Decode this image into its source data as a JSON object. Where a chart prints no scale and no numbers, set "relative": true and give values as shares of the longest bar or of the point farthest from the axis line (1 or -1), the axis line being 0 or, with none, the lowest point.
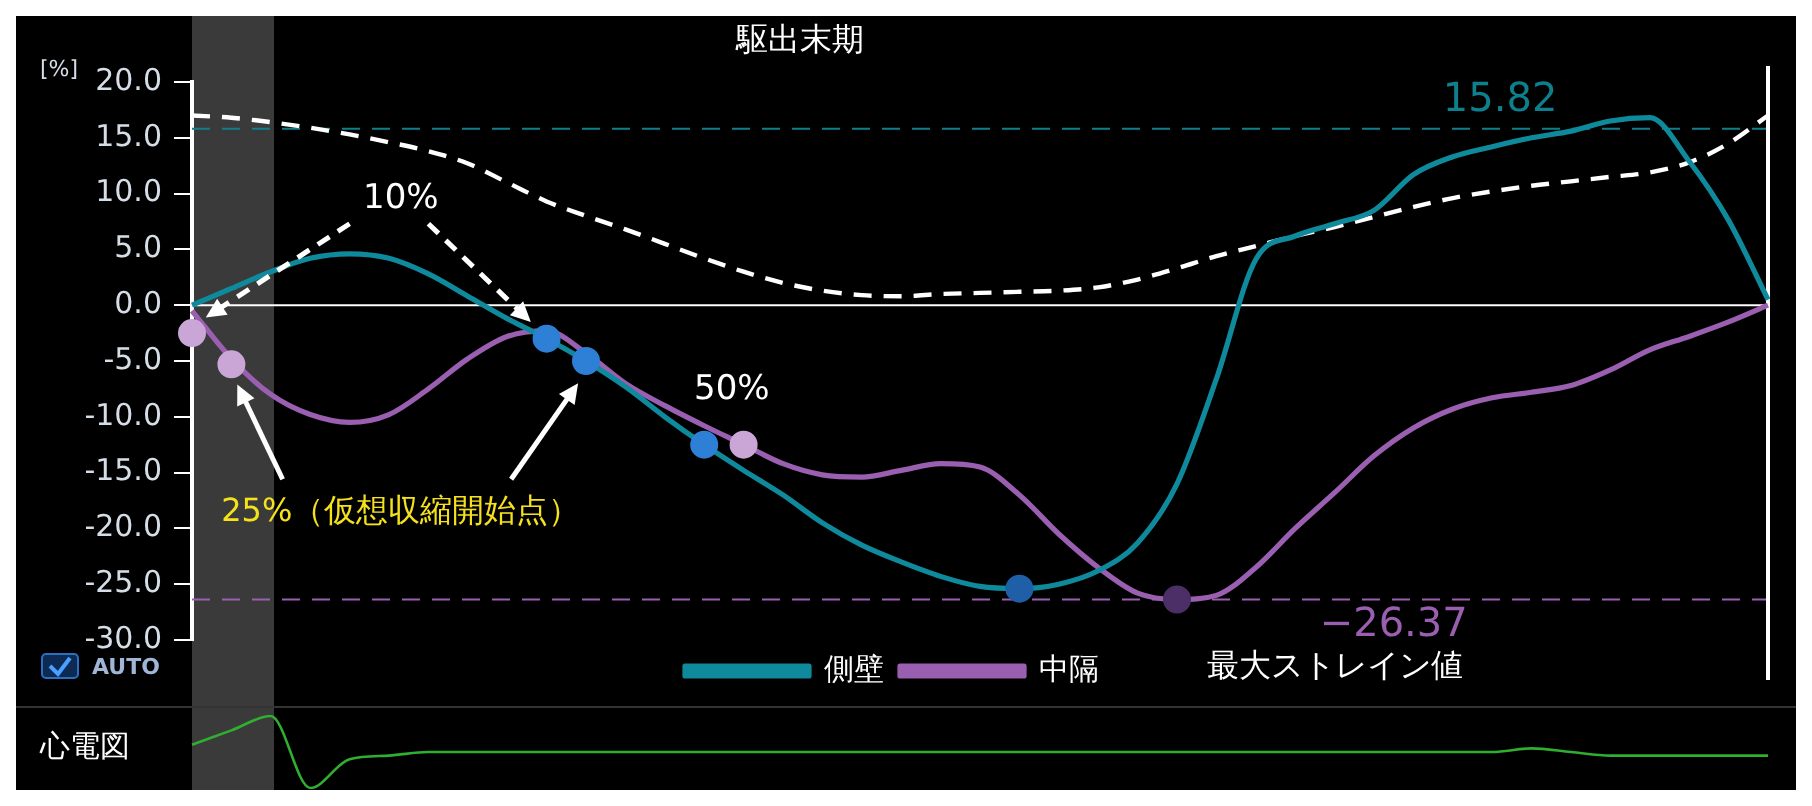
{
  "chart_data": [
    {
      "type": "line",
      "title": "駆出末期",
      "ylabel": "[%]",
      "categories": [
        null,
        null,
        null,
        null,
        null,
        null,
        null,
        null,
        null,
        null,
        null,
        null,
        null,
        null,
        null,
        null,
        null,
        null,
        null,
        null,
        null,
        null,
        null,
        null,
        null,
        null,
        null,
        null,
        null,
        null,
        null,
        null,
        null,
        null,
        null,
        null,
        null,
        null,
        null,
        null,
        null
      ],
      "series": [
        {
          "name": "側壁",
          "color": "#0e8a9c",
          "line_style": "solid",
          "values": [
            0,
            1.5,
            3.0,
            4.2,
            4.6,
            4.2,
            2.8,
            0.8,
            -1.2,
            -3.0,
            -5.0,
            -7.3,
            -10.0,
            -12.5,
            -14.8,
            -17.0,
            -19.5,
            -21.5,
            -23.0,
            -24.3,
            -25.2,
            -25.4,
            -25.0,
            -23.8,
            -21.3,
            -16.0,
            -6.6,
            4.1,
            6.2,
            7.3,
            8.5,
            11.7,
            13.3,
            14.2,
            15.0,
            15.6,
            16.5,
            16.8,
            12.9,
            7.6,
            0.5
          ]
        },
        {
          "name": "中隔",
          "color": "#9a5fb0",
          "line_style": "solid",
          "values": [
            -0.5,
            -4.8,
            -8.0,
            -9.8,
            -10.5,
            -9.8,
            -7.5,
            -4.8,
            -2.8,
            -2.3,
            -4.3,
            -7.0,
            -9.0,
            -10.8,
            -12.5,
            -14.2,
            -15.2,
            -15.4,
            -14.8,
            -14.2,
            -14.5,
            -17.0,
            -20.5,
            -23.5,
            -25.8,
            -26.37,
            -26.0,
            -23.5,
            -20.0,
            -16.8,
            -13.5,
            -11.0,
            -9.3,
            -8.3,
            -7.8,
            -7.2,
            -5.8,
            -4.0,
            -2.8,
            -1.5,
            0
          ]
        },
        {
          "color": "#ffffff",
          "line_style": "dashed",
          "values": [
            17.0,
            16.8,
            16.4,
            15.9,
            15.3,
            14.6,
            13.8,
            12.7,
            11.0,
            9.3,
            8.0,
            6.8,
            5.5,
            4.2,
            3.0,
            2.0,
            1.3,
            0.9,
            0.8,
            1.0,
            1.1,
            1.2,
            1.3,
            1.6,
            2.3,
            3.3,
            4.4,
            5.3,
            6.2,
            7.0,
            7.9,
            8.8,
            9.6,
            10.2,
            10.7,
            11.1,
            11.5,
            11.9,
            12.8,
            14.5,
            17.0
          ]
        },
        {
          "type": "scatter",
          "marker": "circle",
          "values": [
            -2.5,
            -5.3,
            null,
            null,
            null,
            null,
            null,
            null,
            null,
            -3.0,
            -5.0,
            null,
            null,
            -12.5,
            -12.5,
            null,
            null,
            null,
            null,
            null,
            null,
            -25.4,
            null,
            null,
            null,
            -26.37,
            null,
            null,
            null,
            null,
            null,
            null,
            null,
            null,
            null,
            null,
            null,
            null,
            null,
            null,
            null
          ],
          "colors": [
            "#c9a6d6",
            "#c9a6d6",
            null,
            null,
            null,
            null,
            null,
            null,
            null,
            "#2e7fd6",
            "#2e7fd6",
            null,
            null,
            "#2e7fd6",
            "#c9a6d6",
            null,
            null,
            null,
            null,
            null,
            null,
            "#1f5fa8",
            null,
            null,
            null,
            "#4b2f66",
            null,
            null,
            null,
            null,
            null,
            null,
            null,
            null,
            null,
            null,
            null,
            null,
            null,
            null,
            null
          ]
        }
      ],
      "ylim": [
        -30,
        20
      ],
      "yticks": [
        {
          "value": 20,
          "label": "20.0"
        },
        {
          "value": 15,
          "label": "15.0"
        },
        {
          "value": 10,
          "label": "10.0"
        },
        {
          "value": 5,
          "label": "5.0"
        },
        {
          "value": 0,
          "label": "0.0"
        },
        {
          "value": -5,
          "label": "-5.0"
        },
        {
          "value": -10,
          "label": "-10.0"
        },
        {
          "value": -15,
          "label": "-15.0"
        },
        {
          "value": -20,
          "label": "-20.0"
        },
        {
          "value": -25,
          "label": "-25.0"
        },
        {
          "value": -30,
          "label": "-30.0"
        }
      ],
      "tick_labels": "y",
      "grid": false,
      "legend": "bottom",
      "marker": "none",
      "ref_lines": [
        {
          "axis": "y",
          "value": 0,
          "color": "#ffffff",
          "line_style": "solid"
        },
        {
          "axis": "y",
          "value": 15.82,
          "color": "#0e7f8c",
          "line_style": "dashed"
        },
        {
          "axis": "y",
          "value": -26.37,
          "color": "#9a5fb0",
          "line_style": "dashed"
        }
      ],
      "annotations": [
        "10%",
        "50%",
        "25%（仮想収縮開始点）",
        "最大ストレイン値",
        "AUTO",
        {
          "text": "15.82",
          "y": 15.82
        },
        {
          "text": "−26.37",
          "y": -26.37
        }
      ]
    },
    {
      "type": "line",
      "ylabel": "心電図",
      "relative": true,
      "tick_labels": false,
      "grid": false,
      "legend": false,
      "categories": [
        null,
        null,
        null,
        null,
        null,
        null,
        null,
        null,
        null,
        null,
        null,
        null,
        null,
        null,
        null,
        null,
        null,
        null,
        null,
        null,
        null,
        null,
        null,
        null,
        null,
        null,
        null,
        null,
        null,
        null,
        null,
        null,
        null,
        null,
        null,
        null,
        null,
        null,
        null,
        null,
        null
      ],
      "series": [
        {
          "color": "#2fae2f",
          "values": [
            0.6,
            0.8,
            1,
            0,
            0.4,
            0.45,
            0.5,
            0.5,
            0.5,
            0.5,
            0.5,
            0.5,
            0.5,
            0.5,
            0.5,
            0.5,
            0.5,
            0.5,
            0.5,
            0.5,
            0.5,
            0.5,
            0.5,
            0.5,
            0.5,
            0.5,
            0.5,
            0.5,
            0.5,
            0.5,
            0.5,
            0.5,
            0.5,
            0.5,
            0.55,
            0.5,
            0.45,
            0.45,
            0.45,
            0.45,
            0.45
          ]
        }
      ]
    }
  ]
}
